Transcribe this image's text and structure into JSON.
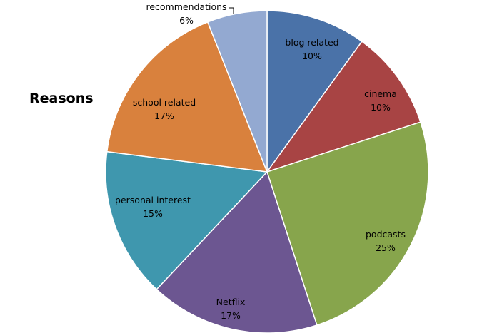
{
  "chart_data": {
    "type": "pie",
    "title": "Reasons",
    "start_angle_deg": 0,
    "direction": "clockwise",
    "slices": [
      {
        "label": "blog related",
        "value": 10,
        "value_label": "10%",
        "color": "#4a72a8"
      },
      {
        "label": "cinema",
        "value": 10,
        "value_label": "10%",
        "color": "#a84444"
      },
      {
        "label": "podcasts",
        "value": 25,
        "value_label": "25%",
        "color": "#87a54c"
      },
      {
        "label": "Netflix",
        "value": 17,
        "value_label": "17%",
        "color": "#6c5691"
      },
      {
        "label": "personal interest",
        "value": 15,
        "value_label": "15%",
        "color": "#3f97ae"
      },
      {
        "label": "school related",
        "value": 17,
        "value_label": "17%",
        "color": "#d9813d"
      },
      {
        "label": "recommendations",
        "value": 6,
        "value_label": "6%",
        "color": "#93a9d1"
      }
    ],
    "legend": "none"
  }
}
